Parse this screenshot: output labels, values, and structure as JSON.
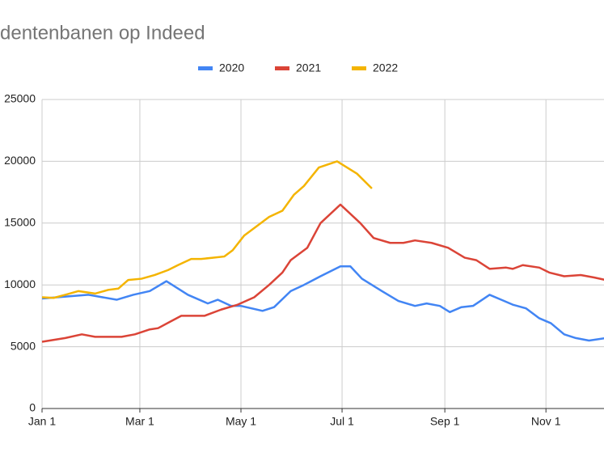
{
  "chart_data": {
    "type": "line",
    "title": "dentenbanen op Indeed",
    "xlim": [
      0,
      340
    ],
    "xticks": [
      {
        "value": 0,
        "label": "Jan 1"
      },
      {
        "value": 59,
        "label": "Mar 1"
      },
      {
        "value": 120,
        "label": "May 1"
      },
      {
        "value": 181,
        "label": "Jul 1"
      },
      {
        "value": 243,
        "label": "Sep 1"
      },
      {
        "value": 304,
        "label": "Nov 1"
      }
    ],
    "ylim": [
      0,
      25000
    ],
    "yticks": [
      0,
      5000,
      10000,
      15000,
      20000,
      25000
    ],
    "grid": true,
    "legend": "top",
    "series": [
      {
        "name": "2020",
        "color": "#4285f4",
        "x": [
          0,
          28,
          45,
          55,
          65,
          75,
          88,
          100,
          106,
          114,
          120,
          133,
          140,
          150,
          158,
          168,
          180,
          186,
          193,
          205,
          215,
          225,
          232,
          240,
          246,
          253,
          260,
          270,
          277,
          284,
          292,
          300,
          307,
          315,
          322,
          330,
          340
        ],
        "values": [
          8900,
          9200,
          8800,
          9200,
          9500,
          10300,
          9200,
          8500,
          8800,
          8300,
          8300,
          7900,
          8200,
          9500,
          10000,
          10700,
          11500,
          11500,
          10500,
          9500,
          8700,
          8300,
          8500,
          8300,
          7800,
          8200,
          8300,
          9200,
          8800,
          8400,
          8100,
          7300,
          6900,
          6000,
          5700,
          5500,
          5700
        ]
      },
      {
        "name": "2021",
        "color": "#db4437",
        "x": [
          0,
          14,
          24,
          32,
          42,
          48,
          56,
          65,
          70,
          77,
          84,
          90,
          98,
          108,
          118,
          128,
          137,
          145,
          150,
          160,
          168,
          180,
          192,
          200,
          210,
          218,
          225,
          235,
          245,
          255,
          262,
          270,
          280,
          284,
          290,
          300,
          306,
          315,
          325,
          333,
          340
        ],
        "values": [
          5400,
          5700,
          6000,
          5800,
          5800,
          5800,
          6000,
          6400,
          6500,
          7000,
          7500,
          7500,
          7500,
          8000,
          8400,
          9000,
          10000,
          11000,
          12000,
          13000,
          15000,
          16500,
          15000,
          13800,
          13400,
          13400,
          13600,
          13400,
          13000,
          12200,
          12000,
          11300,
          11400,
          11300,
          11600,
          11400,
          11000,
          10700,
          10800,
          10600,
          10400
        ]
      },
      {
        "name": "2022",
        "color": "#f4b400",
        "x": [
          0,
          7,
          14,
          22,
          32,
          40,
          46,
          52,
          60,
          68,
          76,
          82,
          90,
          96,
          103,
          110,
          115,
          122,
          130,
          137,
          145,
          152,
          158,
          167,
          178,
          184,
          190,
          199
        ],
        "values": [
          9000,
          8950,
          9200,
          9500,
          9300,
          9600,
          9700,
          10400,
          10500,
          10800,
          11200,
          11600,
          12100,
          12100,
          12200,
          12300,
          12800,
          14000,
          14800,
          15500,
          16000,
          17300,
          18000,
          19500,
          20000,
          19500,
          19000,
          17800
        ]
      }
    ]
  }
}
